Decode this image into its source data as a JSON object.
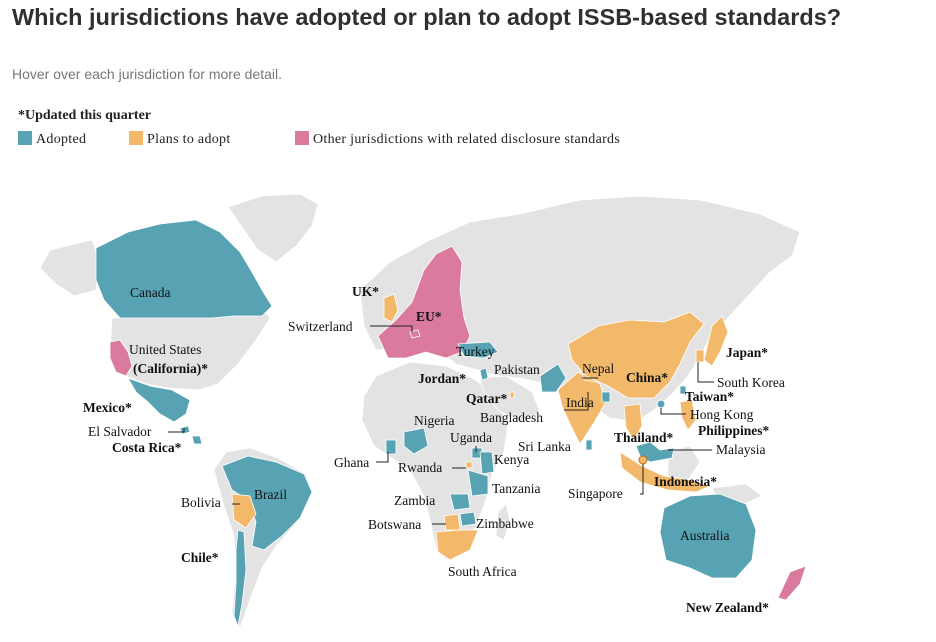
{
  "title": "Which jurisdictions have adopted or plan to adopt ISSB-based standards?",
  "subtitle": "Hover over each jurisdiction for more detail.",
  "note": "*Updated this quarter",
  "colors": {
    "adopted": "#58a3b3",
    "plans": "#f2b96b",
    "other": "#d97a9e",
    "land": "#e3e3e3",
    "border": "#ffffff"
  },
  "legend": [
    {
      "key": "adopted",
      "label": "Adopted"
    },
    {
      "key": "plans",
      "label": "Plans to adopt"
    },
    {
      "key": "other",
      "label": "Other jurisdictions with related disclosure standards"
    }
  ],
  "jurisdictions": [
    {
      "id": "canada",
      "label": "Canada",
      "status": "adopted",
      "bold": false
    },
    {
      "id": "united-states",
      "label": "United States",
      "status": "none",
      "bold": false
    },
    {
      "id": "california",
      "label": "(California)*",
      "status": "other",
      "bold": true
    },
    {
      "id": "mexico",
      "label": "Mexico*",
      "status": "adopted",
      "bold": true
    },
    {
      "id": "el-salvador",
      "label": "El Salvador",
      "status": "adopted",
      "bold": false
    },
    {
      "id": "costa-rica",
      "label": "Costa Rica*",
      "status": "adopted",
      "bold": true
    },
    {
      "id": "brazil",
      "label": "Brazil",
      "status": "adopted",
      "bold": false
    },
    {
      "id": "bolivia",
      "label": "Bolivia",
      "status": "plans",
      "bold": false
    },
    {
      "id": "chile",
      "label": "Chile*",
      "status": "adopted",
      "bold": true
    },
    {
      "id": "uk",
      "label": "UK*",
      "status": "plans",
      "bold": true
    },
    {
      "id": "eu",
      "label": "EU*",
      "status": "other",
      "bold": true
    },
    {
      "id": "switzerland",
      "label": "Switzerland",
      "status": "other",
      "bold": false
    },
    {
      "id": "turkey",
      "label": "Turkey",
      "status": "adopted",
      "bold": false
    },
    {
      "id": "jordan",
      "label": "Jordan*",
      "status": "adopted",
      "bold": true
    },
    {
      "id": "qatar",
      "label": "Qatar*",
      "status": "plans",
      "bold": true
    },
    {
      "id": "pakistan",
      "label": "Pakistan",
      "status": "adopted",
      "bold": false
    },
    {
      "id": "nepal",
      "label": "Nepal",
      "status": "plans",
      "bold": false
    },
    {
      "id": "china",
      "label": "China*",
      "status": "plans",
      "bold": true
    },
    {
      "id": "india",
      "label": "India",
      "status": "plans",
      "bold": false
    },
    {
      "id": "bangladesh",
      "label": "Bangladesh",
      "status": "adopted",
      "bold": false
    },
    {
      "id": "sri-lanka",
      "label": "Sri Lanka",
      "status": "adopted",
      "bold": false
    },
    {
      "id": "japan",
      "label": "Japan*",
      "status": "plans",
      "bold": true
    },
    {
      "id": "south-korea",
      "label": "South Korea",
      "status": "plans",
      "bold": false
    },
    {
      "id": "taiwan",
      "label": "Taiwan*",
      "status": "adopted",
      "bold": true
    },
    {
      "id": "hong-kong",
      "label": "Hong Kong",
      "status": "adopted",
      "bold": false
    },
    {
      "id": "philippines",
      "label": "Philippines*",
      "status": "plans",
      "bold": true
    },
    {
      "id": "thailand",
      "label": "Thailand*",
      "status": "plans",
      "bold": true
    },
    {
      "id": "malaysia",
      "label": "Malaysia",
      "status": "adopted",
      "bold": false
    },
    {
      "id": "singapore",
      "label": "Singapore",
      "status": "plans",
      "bold": false
    },
    {
      "id": "indonesia",
      "label": "Indonesia*",
      "status": "plans",
      "bold": true
    },
    {
      "id": "nigeria",
      "label": "Nigeria",
      "status": "adopted",
      "bold": false
    },
    {
      "id": "ghana",
      "label": "Ghana",
      "status": "adopted",
      "bold": false
    },
    {
      "id": "uganda",
      "label": "Uganda",
      "status": "adopted",
      "bold": false
    },
    {
      "id": "kenya",
      "label": "Kenya",
      "status": "adopted",
      "bold": false
    },
    {
      "id": "rwanda",
      "label": "Rwanda",
      "status": "plans",
      "bold": false
    },
    {
      "id": "tanzania",
      "label": "Tanzania",
      "status": "adopted",
      "bold": false
    },
    {
      "id": "zambia",
      "label": "Zambia",
      "status": "adopted",
      "bold": false
    },
    {
      "id": "zimbabwe",
      "label": "Zimbabwe",
      "status": "adopted",
      "bold": false
    },
    {
      "id": "botswana",
      "label": "Botswana",
      "status": "plans",
      "bold": false
    },
    {
      "id": "south-africa",
      "label": "South Africa",
      "status": "plans",
      "bold": false
    },
    {
      "id": "australia",
      "label": "Australia",
      "status": "adopted",
      "bold": false
    },
    {
      "id": "new-zealand",
      "label": "New Zealand*",
      "status": "other",
      "bold": true
    }
  ]
}
